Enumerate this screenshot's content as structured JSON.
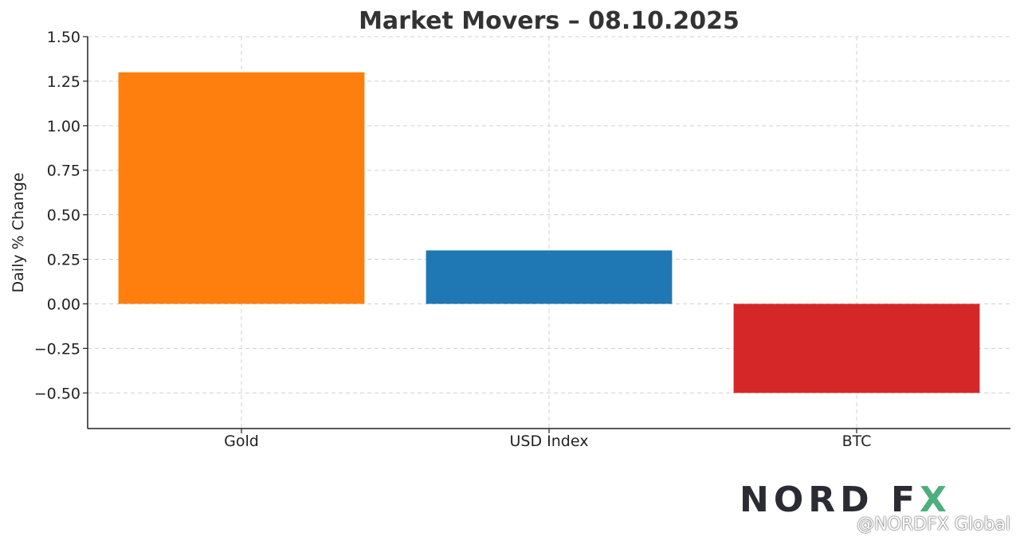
{
  "chart_data": {
    "type": "bar",
    "title": "Market Movers – 08.10.2025",
    "xlabel": "",
    "ylabel": "Daily % Change",
    "categories": [
      "Gold",
      "USD Index",
      "BTC"
    ],
    "values": [
      1.3,
      0.3,
      -0.5
    ],
    "colors": [
      "#ff7f0e",
      "#1f77b4",
      "#d62728"
    ],
    "ylim": [
      -0.7,
      1.5
    ],
    "yticks": [
      1.5,
      1.25,
      1.0,
      0.75,
      0.5,
      0.25,
      0.0,
      -0.25,
      -0.5
    ],
    "ytick_labels": [
      "1.50",
      "1.25",
      "1.00",
      "0.75",
      "0.50",
      "0.25",
      "0.00",
      "−0.25",
      "−0.50"
    ],
    "grid": true
  },
  "branding": {
    "logo_text": "NORD FX",
    "watermark": "@NORDFX Global",
    "logo_colors": [
      "#2b2b33",
      "#4caf7d"
    ]
  }
}
